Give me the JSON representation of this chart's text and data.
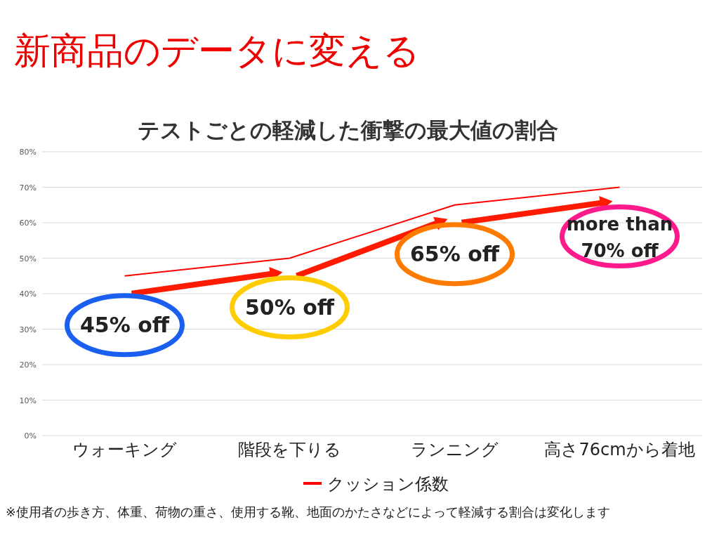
{
  "chart_data": {
    "type": "line",
    "title": "テストごとの軽減した衝撃の最大値の割合",
    "categories": [
      "ウォーキング",
      "階段を下りる",
      "ランニング",
      "高さ76cmから着地"
    ],
    "series": [
      {
        "name": "クッション係数",
        "color": "#ff0000",
        "values": [
          45,
          50,
          65,
          70
        ]
      }
    ],
    "ylim": [
      0,
      80
    ],
    "yticks": [
      {
        "value": 0,
        "label": "0%"
      },
      {
        "value": 10,
        "label": "10%"
      },
      {
        "value": 20,
        "label": "20%"
      },
      {
        "value": 30,
        "label": "30%"
      },
      {
        "value": 40,
        "label": "40%"
      },
      {
        "value": 50,
        "label": "50%"
      },
      {
        "value": 60,
        "label": "60%"
      },
      {
        "value": 70,
        "label": "70%"
      },
      {
        "value": 80,
        "label": "80%"
      }
    ],
    "grid": "y",
    "legend": "bottom",
    "marker": "none",
    "line_style": "solid",
    "annotations": [
      "新商品のデータに変える",
      {
        "text": "45% off",
        "x": "ウォーキング",
        "y": 45
      },
      {
        "text": "50% off",
        "x": "階段を下りる",
        "y": 50
      },
      {
        "text": "65% off",
        "x": "ランニング",
        "y": 65
      },
      {
        "text": "more than 70% off",
        "x": "高さ76cmから着地",
        "y": 70
      },
      "※使用者の歩き方、体重、荷物の重さ、使用する靴、地面のかたさなどによって軽減する割合は変化します"
    ]
  }
}
